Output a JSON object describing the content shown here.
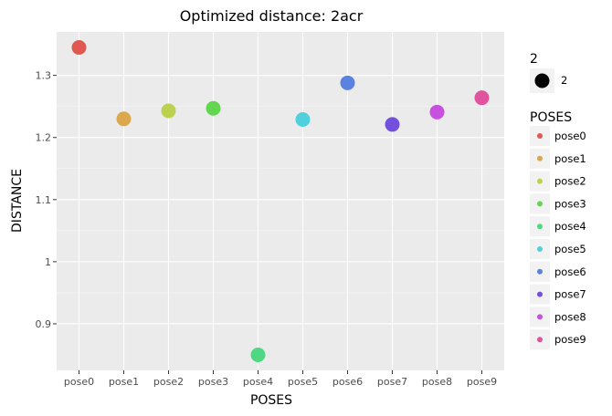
{
  "chart_data": {
    "type": "scatter",
    "title": "Optimized distance: 2acr",
    "xlabel": "POSES",
    "ylabel": "DISTANCE",
    "categories": [
      "pose0",
      "pose1",
      "pose2",
      "pose3",
      "pose4",
      "pose5",
      "pose6",
      "pose7",
      "pose8",
      "pose9"
    ],
    "values": [
      1.345,
      1.23,
      1.243,
      1.247,
      0.85,
      1.229,
      1.288,
      1.221,
      1.241,
      1.264
    ],
    "ylim": [
      0.825,
      1.37
    ],
    "yticks": [
      0.9,
      1,
      1.1,
      1.2,
      1.3
    ],
    "ytick_labels": [
      "0.9",
      "1",
      "1.1",
      "1.2",
      "1.3"
    ],
    "colors": [
      "#e0584f",
      "#dba84e",
      "#bbd14f",
      "#62d64f",
      "#4fd882",
      "#50d0dc",
      "#5a82e0",
      "#7350dc",
      "#c84fe0",
      "#e0549e"
    ],
    "grid": true,
    "legend_position": "right",
    "size_legend": {
      "title": "2",
      "label": "2"
    },
    "color_legend": {
      "title": "POSES",
      "labels": [
        "pose0",
        "pose1",
        "pose2",
        "pose3",
        "pose4",
        "pose5",
        "pose6",
        "pose7",
        "pose8",
        "pose9"
      ]
    }
  }
}
